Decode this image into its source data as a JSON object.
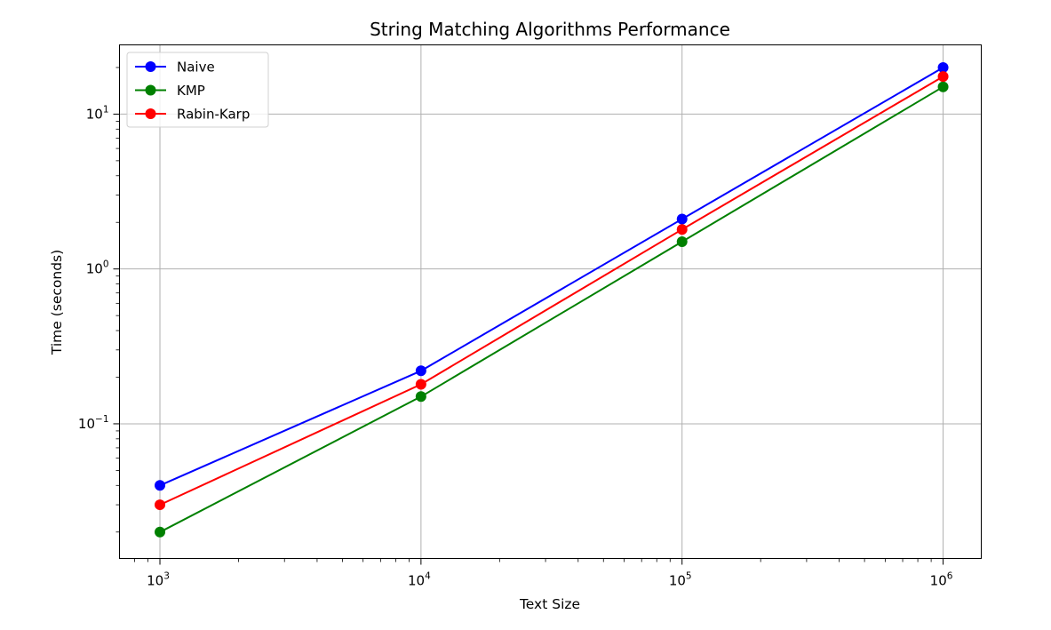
{
  "toolbar": {
    "output_icon": "output-expand-icon"
  },
  "chart_data": {
    "type": "line",
    "title": "String Matching Algorithms Performance",
    "xlabel": "Text Size",
    "ylabel": "Time (seconds)",
    "x_scale": "log",
    "y_scale": "log",
    "xlim": [
      700,
      1400000
    ],
    "ylim": [
      0.0135,
      28
    ],
    "x": [
      1000,
      10000,
      100000,
      1000000
    ],
    "x_ticks": [
      {
        "base": "10",
        "exp": "3",
        "value": 1000
      },
      {
        "base": "10",
        "exp": "4",
        "value": 10000
      },
      {
        "base": "10",
        "exp": "5",
        "value": 100000
      },
      {
        "base": "10",
        "exp": "6",
        "value": 1000000
      }
    ],
    "y_ticks": [
      {
        "base": "10",
        "exp": "−1",
        "value": 0.1
      },
      {
        "base": "10",
        "exp": "0",
        "value": 1
      },
      {
        "base": "10",
        "exp": "1",
        "value": 10
      }
    ],
    "grid": true,
    "legend_position": "top-left",
    "series": [
      {
        "name": "Naive",
        "color": "#0000ff",
        "values": [
          0.04,
          0.22,
          2.1,
          20
        ]
      },
      {
        "name": "KMP",
        "color": "#008000",
        "values": [
          0.02,
          0.15,
          1.5,
          15
        ]
      },
      {
        "name": "Rabin-Karp",
        "color": "#ff0000",
        "values": [
          0.03,
          0.18,
          1.8,
          17.5
        ]
      }
    ]
  }
}
